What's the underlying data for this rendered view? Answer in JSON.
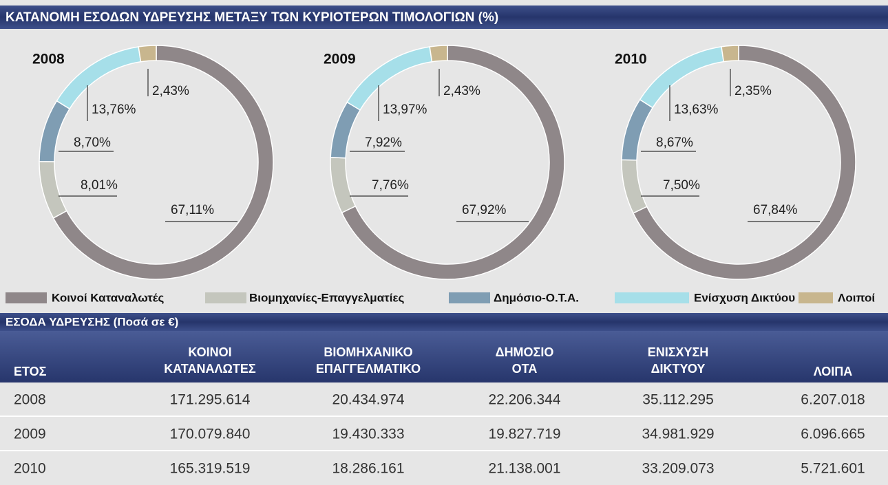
{
  "header": {
    "title": "ΚΑΤΑΝΟΜΗ ΕΣΟΔΩΝ ΥΔΡΕΥΣΗΣ ΜΕΤΑΞΥ ΤΩΝ ΚΥΡΙΟΤΕΡΩΝ ΤΙΜΟΛΟΓΙΩΝ (%)"
  },
  "legend": {
    "names": [
      "Κοινοί Καταναλωτές",
      "Βιομηχανίες-Επαγγελματίες",
      "Δημόσιο-Ο.Τ.Α.",
      "Ενίσχυση Δικτύου",
      "Λοιποί"
    ],
    "colors": [
      "#8f8789",
      "#c4c6bd",
      "#7f9db3",
      "#a6dfe9",
      "#c8b68e"
    ]
  },
  "chart_data": [
    {
      "type": "pie",
      "title": "2008",
      "values": [
        67.11,
        8.01,
        8.7,
        13.76,
        2.43
      ],
      "value_labels": [
        "67,11%",
        "8,01%",
        "8,70%",
        "13,76%",
        "2,43%"
      ]
    },
    {
      "type": "pie",
      "title": "2009",
      "values": [
        67.92,
        7.76,
        7.92,
        13.97,
        2.43
      ],
      "value_labels": [
        "67,92%",
        "7,76%",
        "7,92%",
        "13,97%",
        "2,43%"
      ]
    },
    {
      "type": "pie",
      "title": "2010",
      "values": [
        67.84,
        7.5,
        8.67,
        13.63,
        2.35
      ],
      "value_labels": [
        "67,84%",
        "7,50%",
        "8,67%",
        "13,63%",
        "2,35%"
      ]
    }
  ],
  "table": {
    "title": "ΕΣΟΔΑ ΥΔΡΕΥΣΗΣ (Ποσά σε €)",
    "columns": [
      [
        "ΕΤΟΣ"
      ],
      [
        "ΚΟΙΝΟΙ",
        "ΚΑΤΑΝΑΛΩΤΕΣ"
      ],
      [
        "ΒΙΟΜΗΧΑΝΙΚΟ",
        "ΕΠΑΓΓΕΛΜΑΤΙΚΟ"
      ],
      [
        "ΔΗΜΟΣΙΟ",
        "ΟΤΑ"
      ],
      [
        "ΕΝΙΣΧΥΣΗ",
        "ΔΙΚΤΥΟΥ"
      ],
      [
        "ΛΟΙΠΑ"
      ]
    ],
    "rows": [
      [
        "2008",
        "171.295.614",
        "20.434.974",
        "22.206.344",
        "35.112.295",
        "6.207.018"
      ],
      [
        "2009",
        "170.079.840",
        "19.430.333",
        "19.827.719",
        "34.981.929",
        "6.096.665"
      ],
      [
        "2010",
        "165.319.519",
        "18.286.161",
        "21.138.001",
        "33.209.073",
        "5.721.601"
      ]
    ]
  }
}
